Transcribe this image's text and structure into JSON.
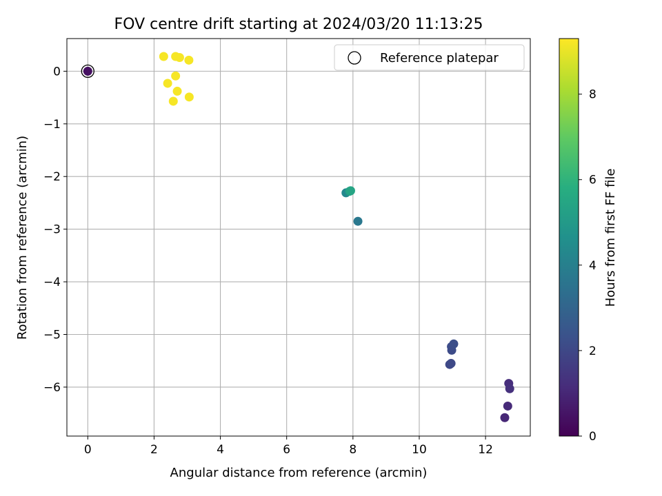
{
  "chart_data": {
    "type": "scatter",
    "title": "FOV centre drift starting at 2024/03/20 11:13:25",
    "xlabel": "Angular distance from reference (arcmin)",
    "ylabel": "Rotation from reference (arcmin)",
    "xlim": [
      -0.63,
      13.35
    ],
    "ylim": [
      -6.93,
      0.62
    ],
    "xticks": [
      0,
      2,
      4,
      6,
      8,
      10,
      12
    ],
    "yticks": [
      0,
      -1,
      -2,
      -3,
      -4,
      -5,
      -6
    ],
    "grid": true,
    "legend": {
      "position": "top-right",
      "entries": [
        "Reference platepar"
      ]
    },
    "reference_point": {
      "x": 0,
      "y": 0
    },
    "colorbar": {
      "label": "Hours from first FF file",
      "min": 0,
      "max": 9.3,
      "ticks": [
        0,
        2,
        4,
        6,
        8
      ],
      "colormap": "viridis"
    },
    "points": [
      {
        "x": 0.0,
        "y": 0.0,
        "hours": 0.4
      },
      {
        "x": 12.58,
        "y": -6.58,
        "hours": 1.0
      },
      {
        "x": 12.67,
        "y": -6.36,
        "hours": 1.1
      },
      {
        "x": 12.7,
        "y": -5.93,
        "hours": 1.2
      },
      {
        "x": 12.73,
        "y": -6.03,
        "hours": 1.3
      },
      {
        "x": 10.92,
        "y": -5.57,
        "hours": 2.0
      },
      {
        "x": 10.96,
        "y": -5.55,
        "hours": 2.05
      },
      {
        "x": 10.98,
        "y": -5.3,
        "hours": 2.1
      },
      {
        "x": 10.97,
        "y": -5.23,
        "hours": 2.15
      },
      {
        "x": 11.04,
        "y": -5.18,
        "hours": 2.2
      },
      {
        "x": 8.15,
        "y": -2.85,
        "hours": 3.7
      },
      {
        "x": 7.79,
        "y": -2.31,
        "hours": 4.3
      },
      {
        "x": 7.9,
        "y": -2.28,
        "hours": 5.2
      },
      {
        "x": 7.93,
        "y": -2.27,
        "hours": 5.4
      },
      {
        "x": 2.29,
        "y": 0.28,
        "hours": 9.2
      },
      {
        "x": 2.65,
        "y": 0.28,
        "hours": 9.2
      },
      {
        "x": 2.77,
        "y": 0.26,
        "hours": 9.2
      },
      {
        "x": 3.05,
        "y": 0.21,
        "hours": 9.2
      },
      {
        "x": 2.65,
        "y": -0.09,
        "hours": 9.2
      },
      {
        "x": 2.41,
        "y": -0.23,
        "hours": 9.2
      },
      {
        "x": 2.7,
        "y": -0.38,
        "hours": 9.2
      },
      {
        "x": 3.06,
        "y": -0.49,
        "hours": 9.2
      },
      {
        "x": 2.58,
        "y": -0.57,
        "hours": 9.2
      }
    ]
  }
}
